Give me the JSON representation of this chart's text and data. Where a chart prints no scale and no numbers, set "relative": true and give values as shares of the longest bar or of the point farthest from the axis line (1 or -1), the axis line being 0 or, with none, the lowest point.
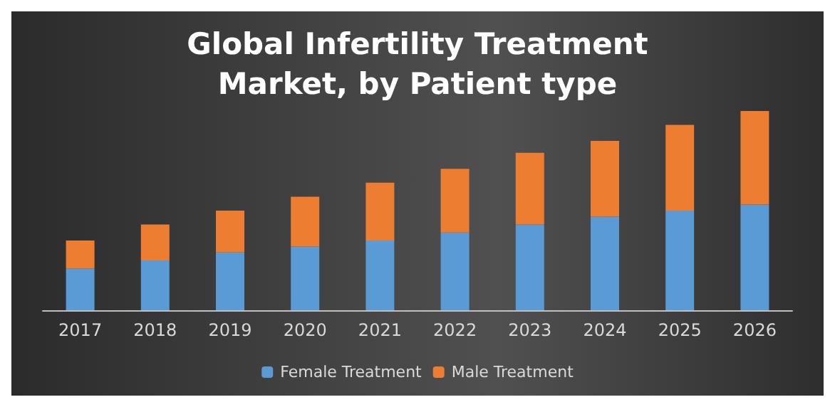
{
  "chart_data": {
    "type": "bar",
    "title": "Global Infertility Treatment\nMarket, by Patient type",
    "categories": [
      "2017",
      "2018",
      "2019",
      "2020",
      "2021",
      "2022",
      "2023",
      "2024",
      "2025",
      "2026"
    ],
    "stacked": true,
    "relative": true,
    "legend": "bottom",
    "series": [
      {
        "name": "Female Treatment",
        "color": "#5b9bd5",
        "values": [
          0.21,
          0.25,
          0.29,
          0.32,
          0.35,
          0.39,
          0.43,
          0.47,
          0.5,
          0.53
        ]
      },
      {
        "name": "Male Treatment",
        "color": "#ed7d31",
        "values": [
          0.14,
          0.18,
          0.21,
          0.25,
          0.29,
          0.32,
          0.36,
          0.38,
          0.43,
          0.47
        ]
      }
    ]
  }
}
